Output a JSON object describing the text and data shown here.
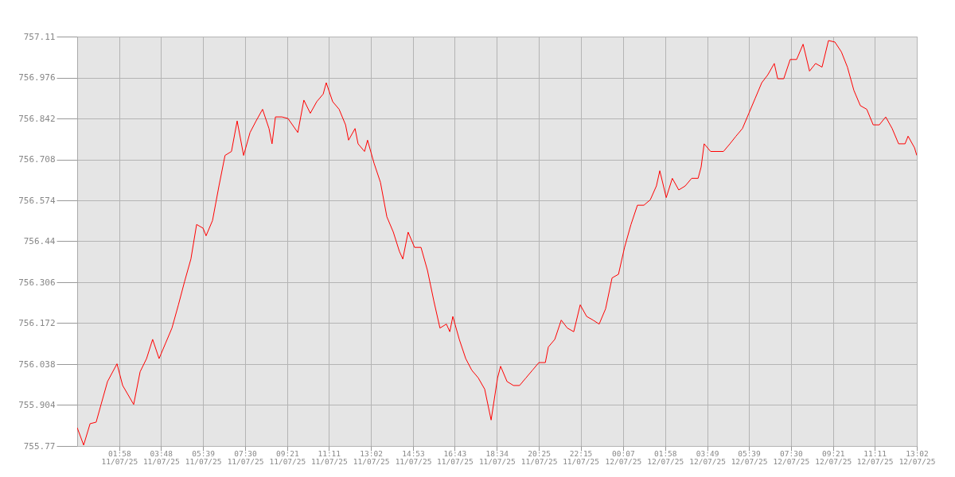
{
  "chart_data": {
    "type": "line",
    "x": [
      "--07-11T00:07",
      "--07-11T00:24",
      "--07-11T00:41",
      "--07-11T00:57",
      "--07-11T01:10",
      "--07-11T01:27",
      "--07-11T01:52",
      "--07-11T02:07",
      "--07-11T02:36",
      "--07-11T02:53",
      "--07-11T03:10",
      "--07-11T03:26",
      "--07-11T03:43",
      "--07-11T04:00",
      "--07-11T04:17",
      "--07-11T04:34",
      "--07-11T04:50",
      "--07-11T05:07",
      "--07-11T05:22",
      "--07-11T05:39",
      "--07-11T05:47",
      "--07-11T06:04",
      "--07-11T06:21",
      "--07-11T06:37",
      "--07-11T06:54",
      "--07-11T07:09",
      "--07-11T07:26",
      "--07-11T07:43",
      "--07-11T07:59",
      "--07-11T08:16",
      "--07-11T08:33",
      "--07-11T08:41",
      "--07-11T08:50",
      "--07-11T09:07",
      "--07-11T09:23",
      "--07-11T09:49",
      "--07-11T10:05",
      "--07-11T10:22",
      "--07-11T10:39",
      "--07-11T10:56",
      "--07-11T11:04",
      "--07-11T11:21",
      "--07-11T11:38",
      "--07-11T11:55",
      "--07-11T12:03",
      "--07-11T12:20",
      "--07-11T12:28",
      "--07-11T12:45",
      "--07-11T12:53",
      "--07-11T13:10",
      "--07-11T13:27",
      "--07-11T13:44",
      "--07-11T14:01",
      "--07-11T14:17",
      "--07-11T14:26",
      "--07-11T14:40",
      "--07-11T14:57",
      "--07-11T15:14",
      "--07-11T15:31",
      "--07-11T15:48",
      "--07-11T16:04",
      "--07-11T16:21",
      "--07-11T16:30",
      "--07-11T16:38",
      "--07-11T16:55",
      "--07-11T17:12",
      "--07-11T17:28",
      "--07-11T17:45",
      "--07-11T18:02",
      "--07-11T18:19",
      "--07-11T18:36",
      "--07-11T18:44",
      "--07-11T19:01",
      "--07-11T19:18",
      "--07-11T19:34",
      "--07-11T19:51",
      "--07-11T20:08",
      "--07-11T20:25",
      "--07-11T20:42",
      "--07-11T20:50",
      "--07-11T21:07",
      "--07-11T21:24",
      "--07-11T21:40",
      "--07-11T21:57",
      "--07-11T22:14",
      "--07-11T22:31",
      "--07-11T22:48",
      "--07-11T23:04",
      "--07-11T23:21",
      "--07-11T23:38",
      "--07-11T23:55",
      "--07-12T00:11",
      "--07-12T00:28",
      "--07-12T00:45",
      "--07-12T01:02",
      "--07-12T01:19",
      "--07-12T01:35",
      "--07-12T01:44",
      "--07-12T02:01",
      "--07-12T02:17",
      "--07-12T02:34",
      "--07-12T02:51",
      "--07-12T03:08",
      "--07-12T03:25",
      "--07-12T03:33",
      "--07-12T03:41",
      "--07-12T03:58",
      "--07-12T04:15",
      "--07-12T04:32",
      "--07-12T04:49",
      "--07-12T05:05",
      "--07-12T05:22",
      "--07-12T05:39",
      "--07-12T05:56",
      "--07-12T06:13",
      "--07-12T06:29",
      "--07-12T06:46",
      "--07-12T06:55",
      "--07-12T07:11",
      "--07-12T07:28",
      "--07-12T07:45",
      "--07-12T08:02",
      "--07-12T08:19",
      "--07-12T08:35",
      "--07-12T08:52",
      "--07-12T09:09",
      "--07-12T09:26",
      "--07-12T09:43",
      "--07-12T09:59",
      "--07-12T10:16",
      "--07-12T10:33",
      "--07-12T10:50",
      "--07-12T11:07",
      "--07-12T11:23",
      "--07-12T11:40",
      "--07-12T11:57",
      "--07-12T12:14",
      "--07-12T12:31",
      "--07-12T12:39",
      "--07-12T12:56",
      "--07-12T13:02"
    ],
    "series": [
      {
        "color": "#ff0000",
        "values": [
          755.83,
          755.773,
          755.843,
          755.848,
          755.906,
          755.981,
          756.039,
          755.968,
          755.906,
          756.013,
          756.056,
          756.119,
          756.056,
          756.106,
          756.156,
          756.232,
          756.307,
          756.382,
          756.495,
          756.483,
          756.458,
          756.508,
          756.621,
          756.721,
          756.734,
          756.834,
          756.721,
          756.796,
          756.834,
          756.872,
          756.809,
          756.759,
          756.847,
          756.847,
          756.842,
          756.796,
          756.902,
          756.859,
          756.897,
          756.922,
          756.959,
          756.897,
          756.872,
          756.821,
          756.771,
          756.809,
          756.759,
          756.734,
          756.771,
          756.696,
          756.633,
          756.52,
          756.47,
          756.407,
          756.382,
          756.47,
          756.42,
          756.42,
          756.345,
          756.244,
          756.156,
          756.169,
          756.144,
          756.194,
          756.119,
          756.056,
          756.018,
          755.993,
          755.956,
          755.855,
          755.993,
          756.031,
          755.981,
          755.968,
          755.968,
          755.993,
          756.018,
          756.043,
          756.043,
          756.094,
          756.119,
          756.182,
          756.156,
          756.144,
          756.232,
          756.194,
          756.182,
          756.169,
          756.219,
          756.32,
          756.332,
          756.42,
          756.495,
          756.558,
          756.558,
          756.576,
          756.621,
          756.671,
          756.583,
          756.646,
          756.608,
          756.621,
          756.646,
          756.646,
          756.683,
          756.759,
          756.734,
          756.734,
          756.734,
          756.759,
          756.784,
          756.809,
          756.859,
          756.909,
          756.959,
          756.985,
          757.022,
          756.972,
          756.972,
          757.035,
          757.035,
          757.085,
          756.997,
          757.022,
          757.01,
          757.097,
          757.092,
          757.06,
          757.01,
          756.934,
          756.884,
          756.872,
          756.821,
          756.821,
          756.847,
          756.809,
          756.759,
          756.759,
          756.784,
          756.746,
          756.721
        ]
      }
    ],
    "xlim": [
      "--07-11T00:07",
      "--07-12T13:02"
    ],
    "xticks": [
      {
        "value": "--07-11T01:58",
        "label": "01:58\n11/07/25"
      },
      {
        "value": "--07-11T03:48",
        "label": "03:48\n11/07/25"
      },
      {
        "value": "--07-11T05:39",
        "label": "05:39\n11/07/25"
      },
      {
        "value": "--07-11T07:30",
        "label": "07:30\n11/07/25"
      },
      {
        "value": "--07-11T09:21",
        "label": "09:21\n11/07/25"
      },
      {
        "value": "--07-11T11:11",
        "label": "11:11\n11/07/25"
      },
      {
        "value": "--07-11T13:02",
        "label": "13:02\n11/07/25"
      },
      {
        "value": "--07-11T14:53",
        "label": "14:53\n11/07/25"
      },
      {
        "value": "--07-11T16:43",
        "label": "16:43\n11/07/25"
      },
      {
        "value": "--07-11T18:34",
        "label": "18:34\n11/07/25"
      },
      {
        "value": "--07-11T20:25",
        "label": "20:25\n11/07/25"
      },
      {
        "value": "--07-11T22:15",
        "label": "22:15\n11/07/25"
      },
      {
        "value": "--07-12T00:07",
        "label": "00:07\n12/07/25"
      },
      {
        "value": "--07-12T01:58",
        "label": "01:58\n12/07/25"
      },
      {
        "value": "--07-12T03:49",
        "label": "03:49\n12/07/25"
      },
      {
        "value": "--07-12T05:39",
        "label": "05:39\n12/07/25"
      },
      {
        "value": "--07-12T07:30",
        "label": "07:30\n12/07/25"
      },
      {
        "value": "--07-12T09:21",
        "label": "09:21\n12/07/25"
      },
      {
        "value": "--07-12T11:11",
        "label": "11:11\n12/07/25"
      },
      {
        "value": "--07-12T13:02",
        "label": "13:02\n12/07/25"
      }
    ],
    "ylim": [
      755.77,
      757.11
    ],
    "yticks": [
      755.77,
      755.904,
      756.038,
      756.172,
      756.306,
      756.44,
      756.574,
      756.708,
      756.842,
      756.976,
      757.11
    ],
    "grid": true
  }
}
